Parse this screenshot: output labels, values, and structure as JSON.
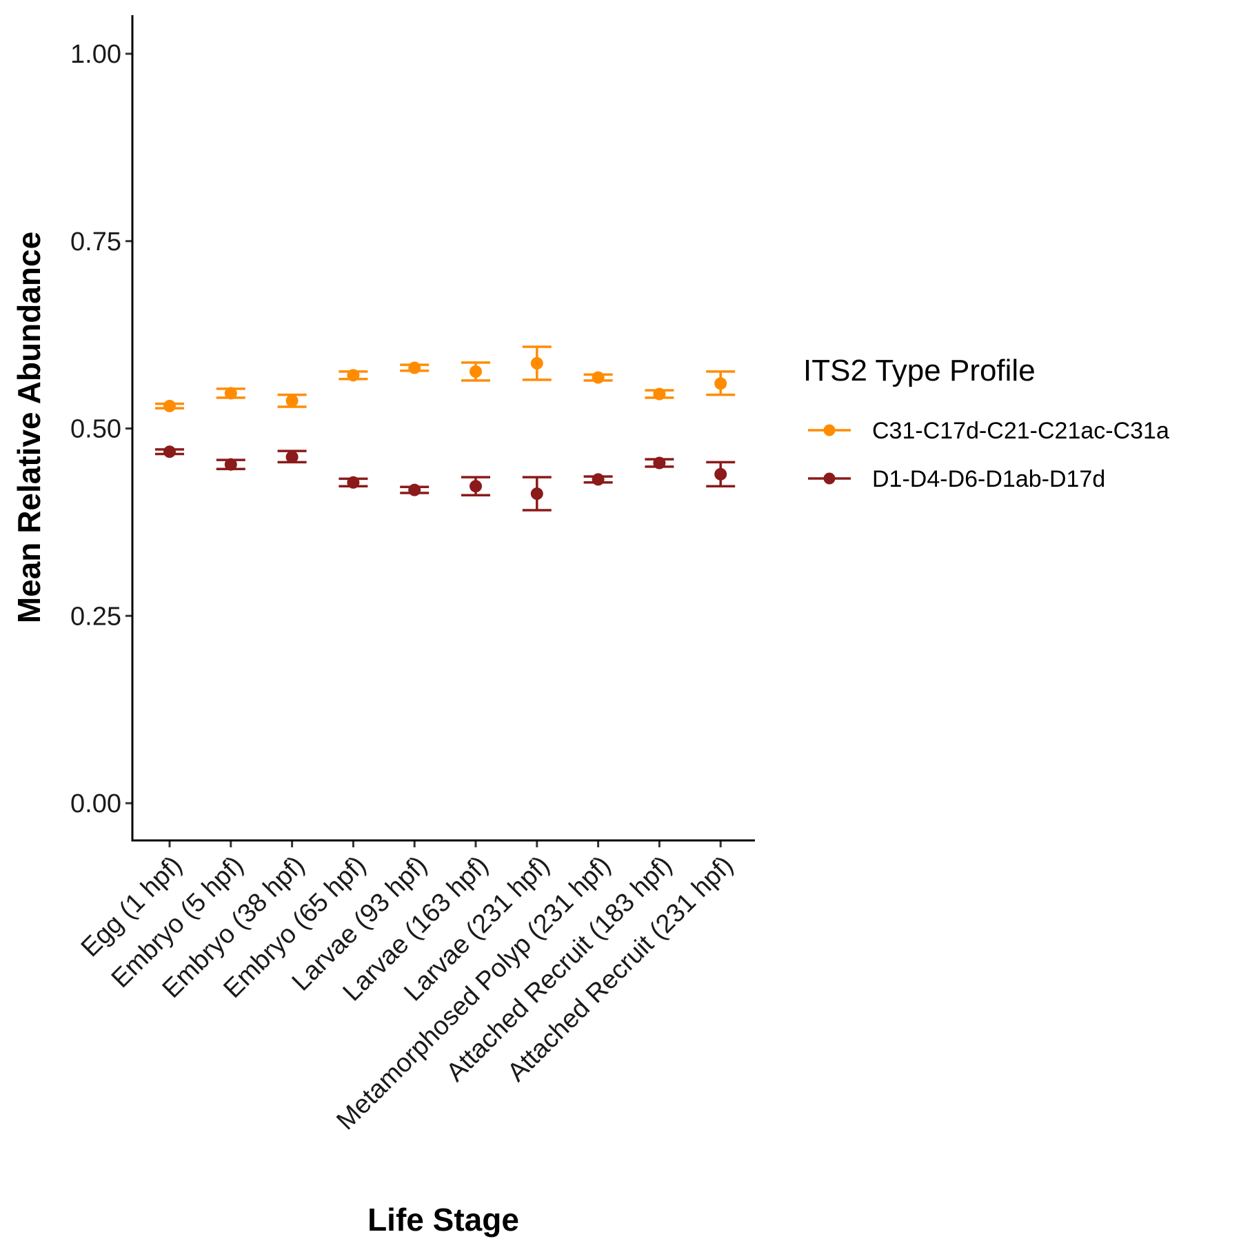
{
  "chart_data": {
    "type": "scatter",
    "title": "",
    "xlabel": "Life Stage",
    "ylabel": "Mean Relative Abundance",
    "ylim": [
      -0.05,
      1.05
    ],
    "yticks": [
      "0.00",
      "0.25",
      "0.50",
      "0.75",
      "1.00"
    ],
    "ytick_values": [
      0,
      0.25,
      0.5,
      0.75,
      1.0
    ],
    "categories": [
      "Egg (1 hpf)",
      "Embryo (5 hpf)",
      "Embryo (38 hpf)",
      "Embryo (65 hpf)",
      "Larvae (93 hpf)",
      "Larvae (163 hpf)",
      "Larvae (231 hpf)",
      "Metamorphosed Polyp (231 hpf)",
      "Attached Recruit (183 hpf)",
      "Attached Recruit (231 hpf)"
    ],
    "grid": false,
    "legend": {
      "title": "ITS2 Type Profile",
      "position": "right"
    },
    "series": [
      {
        "name": "C31-C17d-C21-C21ac-C31a",
        "color": "#FF8C00",
        "values": [
          0.53,
          0.547,
          0.537,
          0.571,
          0.581,
          0.576,
          0.587,
          0.568,
          0.546,
          0.56
        ],
        "error_low": [
          0.527,
          0.541,
          0.529,
          0.566,
          0.577,
          0.564,
          0.565,
          0.564,
          0.541,
          0.545
        ],
        "error_high": [
          0.533,
          0.553,
          0.545,
          0.576,
          0.585,
          0.588,
          0.609,
          0.572,
          0.551,
          0.576
        ]
      },
      {
        "name": "D1-D4-D6-D1ab-D17d",
        "color": "#8B1A1A",
        "values": [
          0.469,
          0.452,
          0.462,
          0.428,
          0.418,
          0.423,
          0.413,
          0.432,
          0.454,
          0.439
        ],
        "error_low": [
          0.466,
          0.446,
          0.455,
          0.423,
          0.414,
          0.411,
          0.391,
          0.428,
          0.449,
          0.423
        ],
        "error_high": [
          0.472,
          0.458,
          0.47,
          0.433,
          0.422,
          0.435,
          0.435,
          0.436,
          0.459,
          0.455
        ]
      }
    ]
  }
}
